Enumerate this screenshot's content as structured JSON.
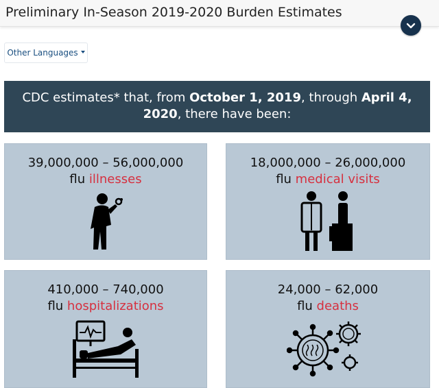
{
  "header": {
    "title": "Preliminary In-Season 2019-2020 Burden Estimates"
  },
  "language_button": {
    "label": "Other Languages"
  },
  "banner": {
    "pre": "CDC estimates* that, from ",
    "start": "October 1, 2019",
    "mid": ", through ",
    "end": "April 4,",
    "line2_end": "2020",
    "post": ", there have been:"
  },
  "cards": [
    {
      "range": "39,000,000 – 56,000,000",
      "prefix": "flu ",
      "metric": "illnesses"
    },
    {
      "range": "18,000,000 – 26,000,000",
      "prefix": "flu ",
      "metric": "medical visits"
    },
    {
      "range": "410,000 – 740,000",
      "prefix": "flu ",
      "metric": "hospitalizations"
    },
    {
      "range": "24,000 – 62,000",
      "prefix": "flu ",
      "metric": "deaths"
    }
  ],
  "colors": {
    "banner": "#2f4656",
    "card": "#b9c8d5",
    "accent": "#d6303f",
    "toggle": "#17324d"
  },
  "icons": [
    "chevron-down-icon",
    "sick-person-icon",
    "doctor-patient-icon",
    "hospital-bed-icon",
    "virus-icon"
  ]
}
